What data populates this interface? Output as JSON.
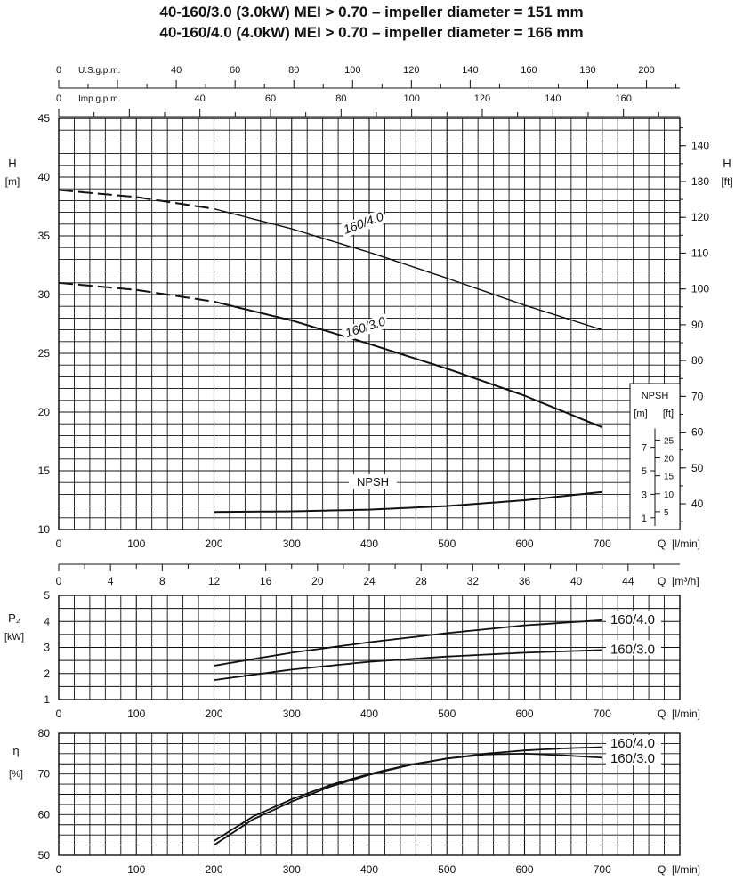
{
  "title": {
    "line1": "40-160/3.0 (3.0kW) MEI > 0.70 – impeller diameter = 151 mm",
    "line2": "40-160/4.0 (4.0kW) MEI > 0.70 – impeller diameter = 166 mm"
  },
  "chart_data": [
    {
      "type": "line",
      "name": "head",
      "ylabel_left": "H",
      "yunit_left": "[m]",
      "ylabel_right": "H",
      "yunit_right": "[ft]",
      "xlabel": "Q",
      "xunit": "[l/min]",
      "xlim": [
        0,
        800
      ],
      "ylim": [
        10,
        45
      ],
      "x_ticks": [
        0,
        100,
        200,
        300,
        400,
        500,
        600,
        700
      ],
      "y_ticks": [
        10,
        15,
        20,
        25,
        30,
        35,
        40,
        45
      ],
      "y_ticks_ft": [
        40,
        50,
        60,
        70,
        80,
        90,
        100,
        110,
        120,
        130,
        140
      ],
      "top_axes": [
        {
          "label": "U.S.g.p.m.",
          "ticks": [
            0,
            40,
            60,
            80,
            100,
            120,
            140,
            160,
            180,
            200
          ]
        },
        {
          "label": "Imp.g.p.m.",
          "ticks": [
            0,
            40,
            60,
            80,
            100,
            120,
            140,
            160
          ]
        }
      ],
      "series": [
        {
          "name": "160/4.0",
          "x": [
            0,
            100,
            200,
            300,
            400,
            500,
            600,
            700
          ],
          "y": [
            38.9,
            38.3,
            37.3,
            35.6,
            33.6,
            31.4,
            29.1,
            27.0
          ],
          "dashed_until": 200
        },
        {
          "name": "160/3.0",
          "x": [
            0,
            100,
            200,
            300,
            400,
            500,
            600,
            700
          ],
          "y": [
            31.0,
            30.4,
            29.4,
            27.8,
            25.8,
            23.7,
            21.4,
            18.7
          ],
          "dashed_until": 200
        },
        {
          "name": "NPSH",
          "x": [
            200,
            300,
            400,
            500,
            600,
            700
          ],
          "y": [
            11.5,
            11.55,
            11.7,
            12.0,
            12.5,
            13.2
          ]
        }
      ],
      "npsh_scale": {
        "title": "NPSH",
        "unit_m": "[m]",
        "unit_ft": "[ft]",
        "m_ticks": [
          1,
          3,
          5,
          7
        ],
        "ft_ticks": [
          5,
          10,
          15,
          20,
          25
        ]
      }
    },
    {
      "type": "axis",
      "name": "flow-m3h",
      "xlabel": "Q",
      "xunit": "[m³/h]",
      "ticks": [
        0,
        4,
        8,
        12,
        16,
        20,
        24,
        28,
        32,
        36,
        40,
        44
      ]
    },
    {
      "type": "line",
      "name": "power",
      "ylabel": "P₂",
      "yunit": "[kW]",
      "xlabel": "Q",
      "xunit": "[l/min]",
      "xlim": [
        0,
        800
      ],
      "ylim": [
        1,
        5
      ],
      "x_ticks": [
        0,
        100,
        200,
        300,
        400,
        500,
        600,
        700
      ],
      "y_ticks": [
        1,
        2,
        3,
        4,
        5
      ],
      "series": [
        {
          "name": "160/4.0",
          "x": [
            200,
            300,
            400,
            500,
            600,
            700
          ],
          "y": [
            2.3,
            2.8,
            3.2,
            3.55,
            3.85,
            4.05
          ]
        },
        {
          "name": "160/3.0",
          "x": [
            200,
            300,
            400,
            500,
            600,
            700
          ],
          "y": [
            1.75,
            2.15,
            2.45,
            2.65,
            2.8,
            2.9
          ]
        }
      ]
    },
    {
      "type": "line",
      "name": "efficiency",
      "ylabel": "η",
      "yunit": "[%]",
      "xlabel": "Q",
      "xunit": "[l/min]",
      "xlim": [
        0,
        800
      ],
      "ylim": [
        50,
        80
      ],
      "x_ticks": [
        0,
        100,
        200,
        300,
        400,
        500,
        600,
        700
      ],
      "y_ticks": [
        50,
        60,
        70,
        80
      ],
      "series": [
        {
          "name": "160/4.0",
          "x": [
            200,
            250,
            300,
            350,
            400,
            450,
            500,
            550,
            600,
            650,
            700
          ],
          "y": [
            53.5,
            59.5,
            63.8,
            67.3,
            70.0,
            72.2,
            73.8,
            75.0,
            75.8,
            76.3,
            76.6
          ]
        },
        {
          "name": "160/3.0",
          "x": [
            200,
            250,
            300,
            350,
            400,
            450,
            500,
            550,
            600,
            650,
            700
          ],
          "y": [
            52.5,
            58.8,
            63.2,
            66.9,
            69.8,
            72.1,
            73.8,
            74.8,
            75.0,
            74.6,
            74.0
          ]
        }
      ]
    }
  ]
}
